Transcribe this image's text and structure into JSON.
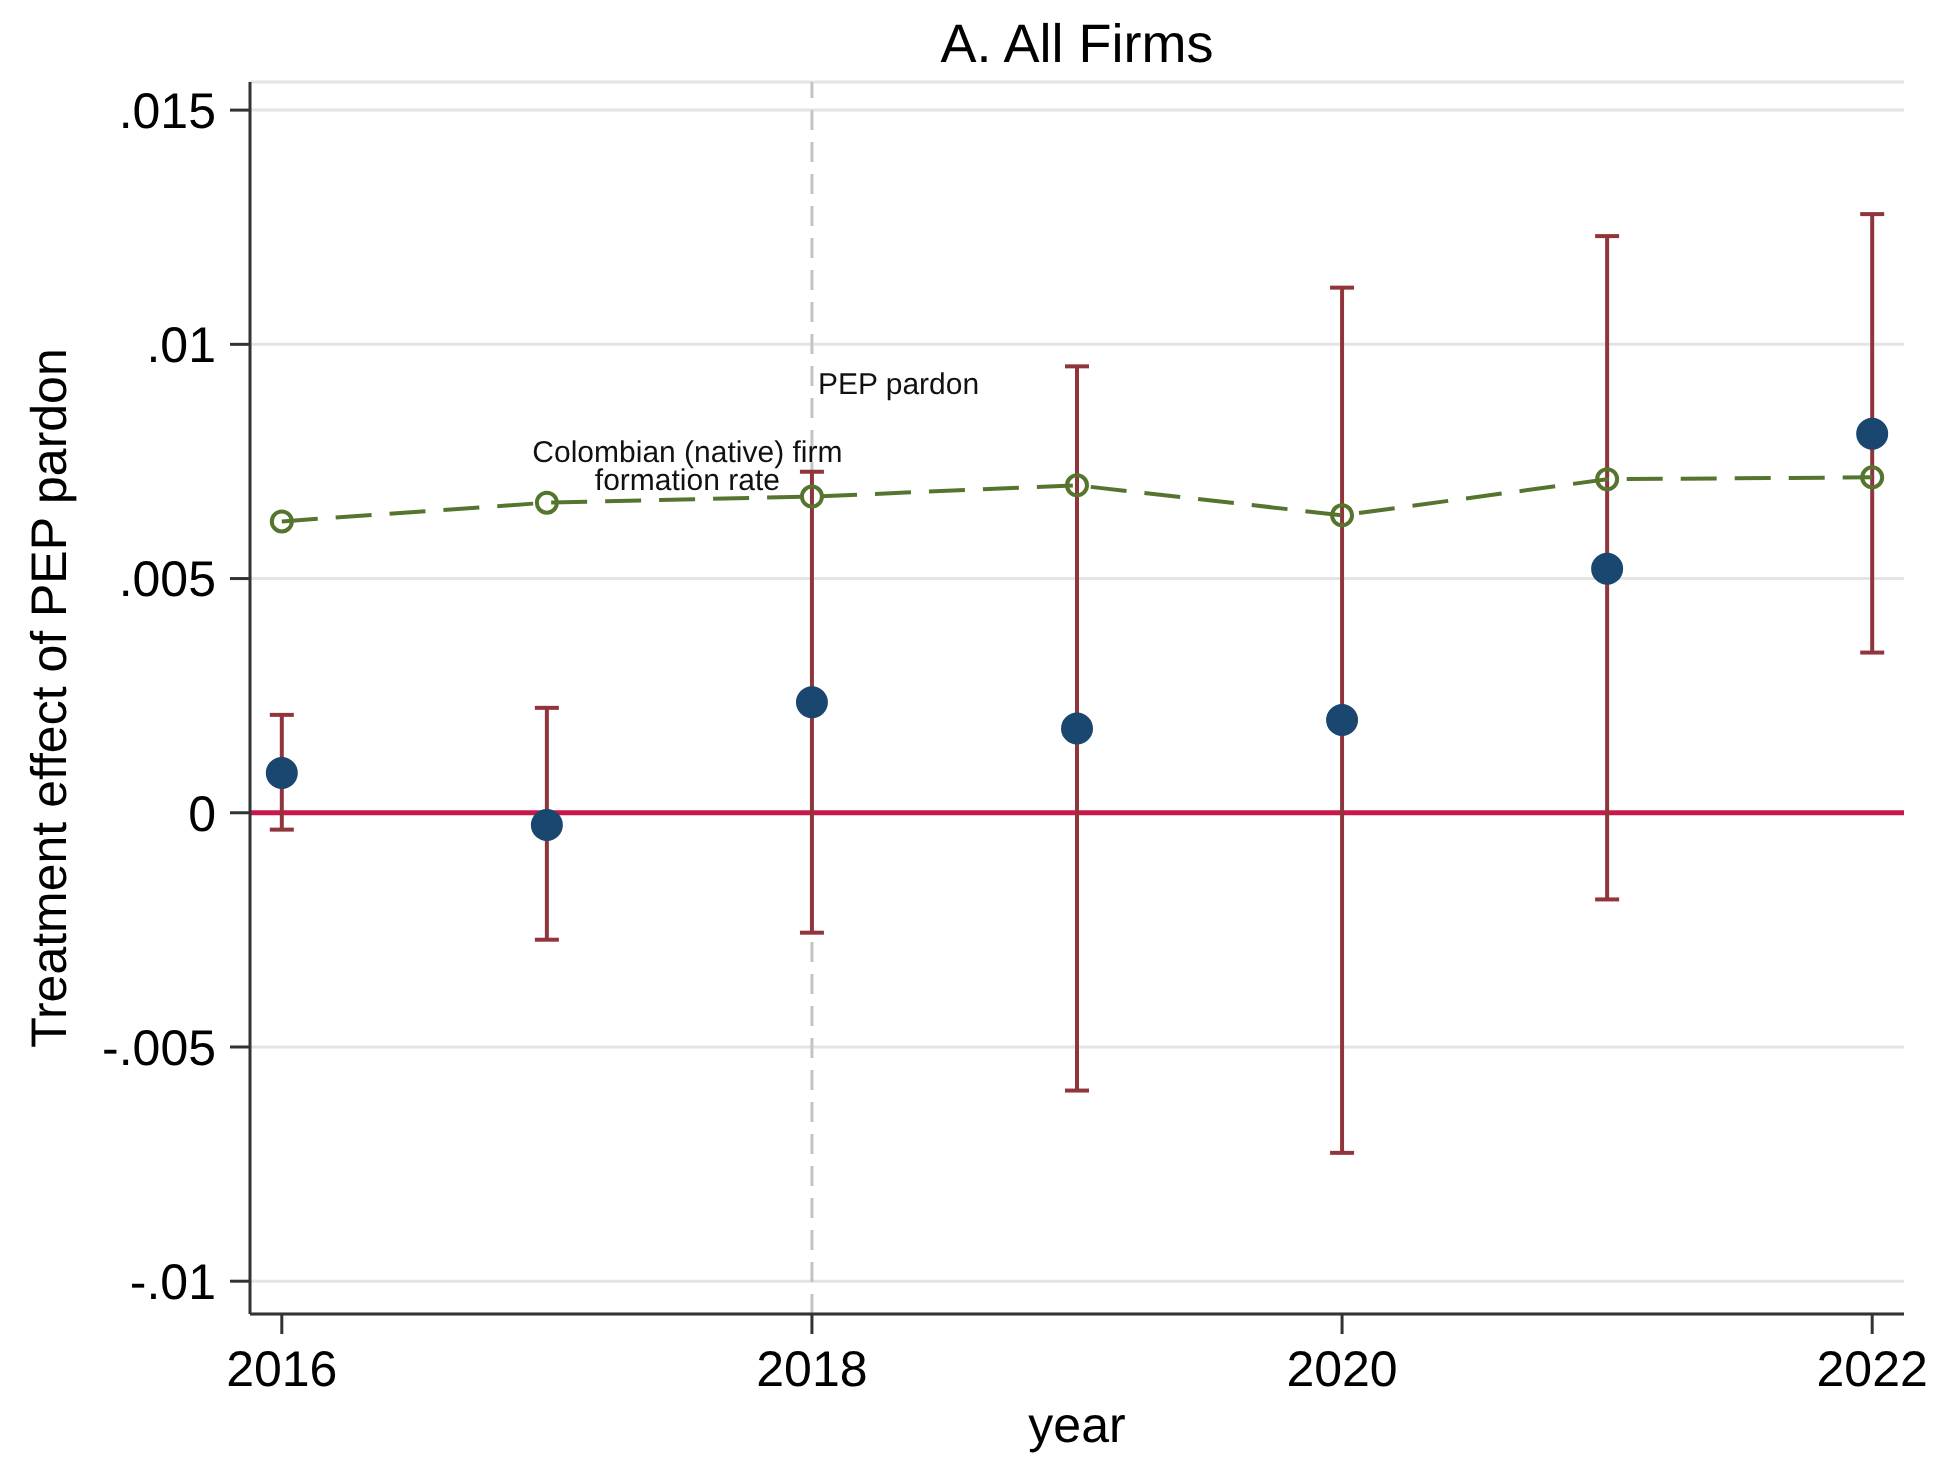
{
  "chart_data": {
    "type": "scatter",
    "title": "A. All Firms",
    "xlabel": "year",
    "ylabel": "Treatment effect of PEP pardon",
    "x": [
      2016,
      2017,
      2018,
      2019,
      2020,
      2021,
      2022
    ],
    "series": [
      {
        "color": "#1a476f",
        "marker": "circle",
        "values": [
          0.00085,
          -0.00026,
          0.00236,
          0.0018,
          0.00198,
          0.00521,
          0.00809
        ],
        "errors": [
          [
            -0.00036,
            0.00209
          ],
          [
            -0.00271,
            0.00224
          ],
          [
            -0.00256,
            0.00728
          ],
          [
            -0.00593,
            0.00953
          ],
          [
            -0.00726,
            0.01121
          ],
          [
            -0.00185,
            0.01231
          ],
          [
            0.00342,
            0.01278
          ]
        ]
      },
      {
        "type": "line",
        "name": "Colombian (native) firm formation rate",
        "color": "#55752f",
        "marker": "circle",
        "line_style": "dashed",
        "values": [
          0.00622,
          0.00662,
          0.00675,
          0.00699,
          0.00635,
          0.00712,
          0.00716
        ]
      }
    ],
    "xlim": [
      2015.88,
      2022.12
    ],
    "xticks": [
      2016,
      2018,
      2020,
      2022
    ],
    "ylim": [
      -0.0107,
      0.0156
    ],
    "yticks": [
      {
        "value": -0.01,
        "label": "-.01"
      },
      {
        "value": -0.005,
        "label": "-.005"
      },
      0,
      {
        "value": 0.005,
        "label": ".005"
      },
      {
        "value": 0.01,
        "label": ".01"
      },
      {
        "value": 0.015,
        "label": ".015"
      }
    ],
    "grid": "y",
    "ref_lines": [
      {
        "axis": "y",
        "value": 0,
        "color": "#c8184a",
        "line_style": "solid"
      },
      {
        "axis": "x",
        "value": 2018,
        "label": "PEP pardon",
        "color": "#c4c4c4",
        "line_style": "dashed"
      }
    ]
  }
}
